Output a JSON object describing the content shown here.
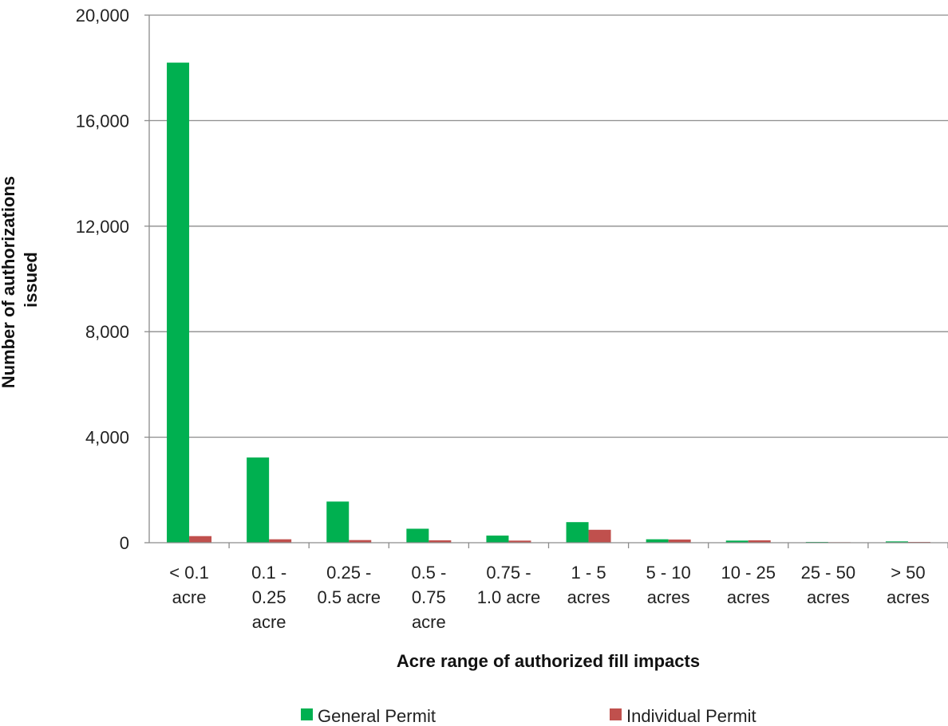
{
  "chart_data": {
    "type": "bar",
    "title": "",
    "xlabel": "Acre range of authorized fill impacts",
    "ylabel": "Number of authorizations issued",
    "ylim": [
      0,
      20000
    ],
    "yticks": [
      0,
      4000,
      8000,
      12000,
      16000,
      20000
    ],
    "ytick_labels": [
      "0",
      "4,000",
      "8,000",
      "12,000",
      "16,000",
      "20,000"
    ],
    "grid": true,
    "legend_position": "bottom",
    "categories": [
      [
        "< 0.1",
        "acre"
      ],
      [
        "0.1 -",
        "0.25",
        "acre"
      ],
      [
        "0.25 -",
        "0.5 acre"
      ],
      [
        "0.5 -",
        "0.75",
        "acre"
      ],
      [
        "0.75 -",
        "1.0 acre"
      ],
      [
        "1 - 5",
        "acres"
      ],
      [
        "5 - 10",
        "acres"
      ],
      [
        "10 - 25",
        "acres"
      ],
      [
        "25 - 50",
        "acres"
      ],
      [
        "> 50",
        "acres"
      ]
    ],
    "series": [
      {
        "name": "General Permit",
        "color": "#00b050",
        "values": [
          18200,
          3230,
          1560,
          530,
          270,
          780,
          130,
          80,
          30,
          50
        ]
      },
      {
        "name": "Individual Permit",
        "color": "#c0504d",
        "values": [
          250,
          130,
          100,
          90,
          80,
          490,
          120,
          90,
          20,
          30
        ]
      }
    ]
  }
}
